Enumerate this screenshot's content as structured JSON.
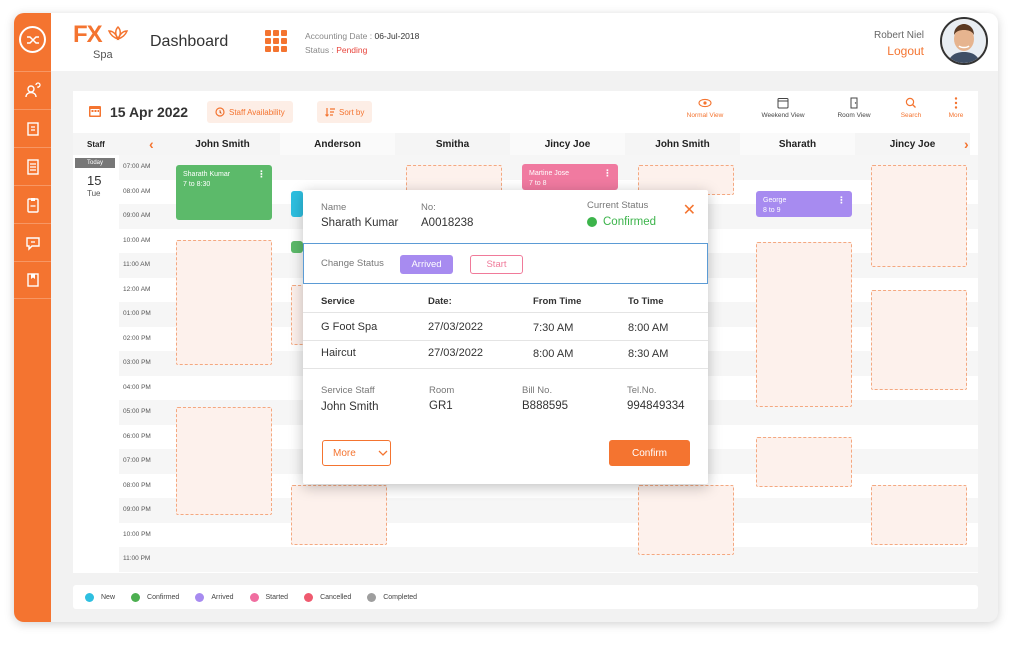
{
  "header": {
    "brand": "FX",
    "brand_sub": "Spa",
    "title": "Dashboard",
    "accounting_label": "Accounting Date : ",
    "accounting_date": "06-Jul-2018",
    "status_label": "Status : ",
    "status_value": "Pending",
    "user_name": "Robert Niel",
    "logout": "Logout"
  },
  "sidebar": {
    "items": [
      "shuffle-icon",
      "user-help-icon",
      "document-icon",
      "list-icon",
      "clipboard-icon",
      "chat-icon",
      "bookmark-icon"
    ]
  },
  "toolbar": {
    "date": "15 Apr 2022",
    "staff_availability": "Staff Availability",
    "sort_by": "Sort by",
    "views": [
      "Normal View",
      "Weekend View",
      "Room View",
      "Search",
      "More"
    ]
  },
  "calendar": {
    "staff_label": "Staff",
    "columns": [
      "John Smith",
      "Anderson",
      "Smitha",
      "Jincy Joe",
      "John Smith",
      "Sharath",
      "Jincy Joe"
    ],
    "today_tag": "Today",
    "day_num": "15",
    "day_name": "Tue",
    "times": [
      "07:00 AM",
      "08:00 AM",
      "09:00 AM",
      "10:00 AM",
      "11:00 AM",
      "12:00 AM",
      "01:00 PM",
      "02:00 PM",
      "03:00 PM",
      "04:00 PM",
      "05:00 PM",
      "06:00 PM",
      "07:00 PM",
      "08:00 PM",
      "09:00 PM",
      "10:00 PM",
      "11:00 PM"
    ],
    "appointments": [
      {
        "name": "Sharath Kumar",
        "time": "7 to 8:30",
        "color": "#5cba6a"
      },
      {
        "name": "Martine Jose",
        "time": "7 to 8",
        "color": "#f07aa0"
      },
      {
        "name": "George",
        "time": "8 to 9",
        "color": "#a78bf0"
      }
    ]
  },
  "legend": [
    {
      "label": "New",
      "color": "#2ebfe0"
    },
    {
      "label": "Confirmed",
      "color": "#4caf50"
    },
    {
      "label": "Arrived",
      "color": "#a78bf0"
    },
    {
      "label": "Started",
      "color": "#f06ea0"
    },
    {
      "label": "Cancelled",
      "color": "#ef5a6f"
    },
    {
      "label": "Completed",
      "color": "#9e9e9e"
    }
  ],
  "modal": {
    "name_label": "Name",
    "name_value": "Sharath Kumar",
    "no_label": "No:",
    "no_value": "A0018238",
    "status_label": "Current Status",
    "status_value": "Confirmed",
    "change_status_label": "Change Status",
    "arrived": "Arrived",
    "start": "Start",
    "headers": {
      "service": "Service",
      "date": "Date:",
      "from": "From Time",
      "to": "To Time"
    },
    "services": [
      {
        "service": "G Foot Spa",
        "date": "27/03/2022",
        "from": "7:30 AM",
        "to": "8:00 AM"
      },
      {
        "service": "Haircut",
        "date": "27/03/2022",
        "from": "8:00 AM",
        "to": "8:30 AM"
      }
    ],
    "staff_label": "Service Staff",
    "staff_value": "John Smith",
    "room_label": "Room",
    "room_value": "GR1",
    "bill_label": "Bill No.",
    "bill_value": "B888595",
    "tel_label": "Tel.No.",
    "tel_value": "994849334",
    "more": "More",
    "confirm": "Confirm"
  }
}
